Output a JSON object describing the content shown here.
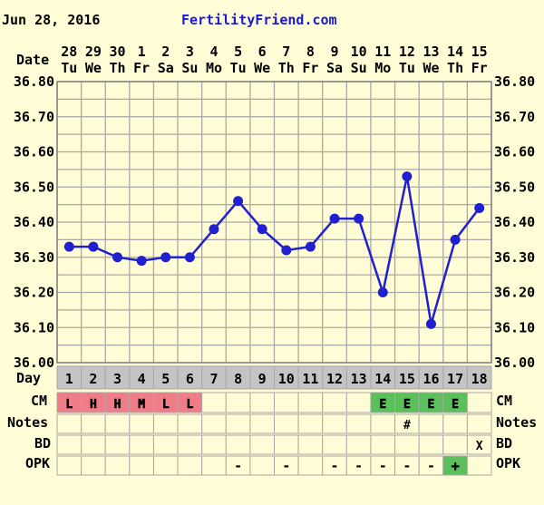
{
  "header": {
    "date": "Jun 28, 2016",
    "site": "FertilityFriend.com"
  },
  "labels": {
    "date": "Date",
    "day": "Day",
    "cm": "CM",
    "notes": "Notes",
    "bd": "BD",
    "opk": "OPK"
  },
  "colors": {
    "line": "#2020d0",
    "grid": "#a8a8a8",
    "cm_pink": "#f07c88",
    "cm_green": "#5bbf5b",
    "opk_green": "#5bbf5b",
    "day_row": "#c4c4c4",
    "plot_bg": "#fffcd6"
  },
  "chart_data": {
    "type": "line",
    "date_numbers": [
      "28",
      "29",
      "30",
      "1",
      "2",
      "3",
      "4",
      "5",
      "6",
      "7",
      "8",
      "9",
      "10",
      "11",
      "12",
      "13",
      "14",
      "15"
    ],
    "weekdays": [
      "Tu",
      "We",
      "Th",
      "Fr",
      "Sa",
      "Su",
      "Mo",
      "Tu",
      "We",
      "Th",
      "Fr",
      "Sa",
      "Su",
      "Mo",
      "Tu",
      "We",
      "Th",
      "Fr"
    ],
    "days": [
      "1",
      "2",
      "3",
      "4",
      "5",
      "6",
      "7",
      "8",
      "9",
      "10",
      "11",
      "12",
      "13",
      "14",
      "15",
      "16",
      "17",
      "18"
    ],
    "y_ticks": [
      "36.80",
      "36.70",
      "36.60",
      "36.50",
      "36.40",
      "36.30",
      "36.20",
      "36.10",
      "36.00"
    ],
    "ylim": [
      36.0,
      36.8
    ],
    "series": [
      {
        "values": [
          36.33,
          36.33,
          36.3,
          36.29,
          36.3,
          36.3,
          36.38,
          36.46,
          36.38,
          36.32,
          36.33,
          36.41,
          36.41,
          36.2,
          36.53,
          36.11,
          36.35,
          36.44
        ]
      }
    ],
    "grid": true,
    "cm": [
      "L",
      "H",
      "H",
      "M",
      "L",
      "L",
      "",
      "",
      "",
      "",
      "",
      "",
      "",
      "E",
      "E",
      "E",
      "E",
      ""
    ],
    "cm_colors": [
      "pink",
      "pink",
      "pink",
      "pink",
      "pink",
      "pink",
      "",
      "",
      "",
      "",
      "",
      "",
      "",
      "green",
      "green",
      "green",
      "green",
      ""
    ],
    "notes": [
      "",
      "",
      "",
      "",
      "",
      "",
      "",
      "",
      "",
      "",
      "",
      "",
      "",
      "",
      "#",
      "",
      "",
      ""
    ],
    "bd": [
      "",
      "",
      "",
      "",
      "",
      "",
      "",
      "",
      "",
      "",
      "",
      "",
      "",
      "",
      "",
      "",
      "",
      "X"
    ],
    "opk": [
      "",
      "",
      "",
      "",
      "",
      "",
      "",
      "-",
      "",
      "-",
      "",
      "-",
      "-",
      "-",
      "-",
      "-",
      "+",
      ""
    ],
    "opk_colors": [
      "",
      "",
      "",
      "",
      "",
      "",
      "",
      "",
      "",
      "",
      "",
      "",
      "",
      "",
      "",
      "",
      "green",
      ""
    ]
  }
}
